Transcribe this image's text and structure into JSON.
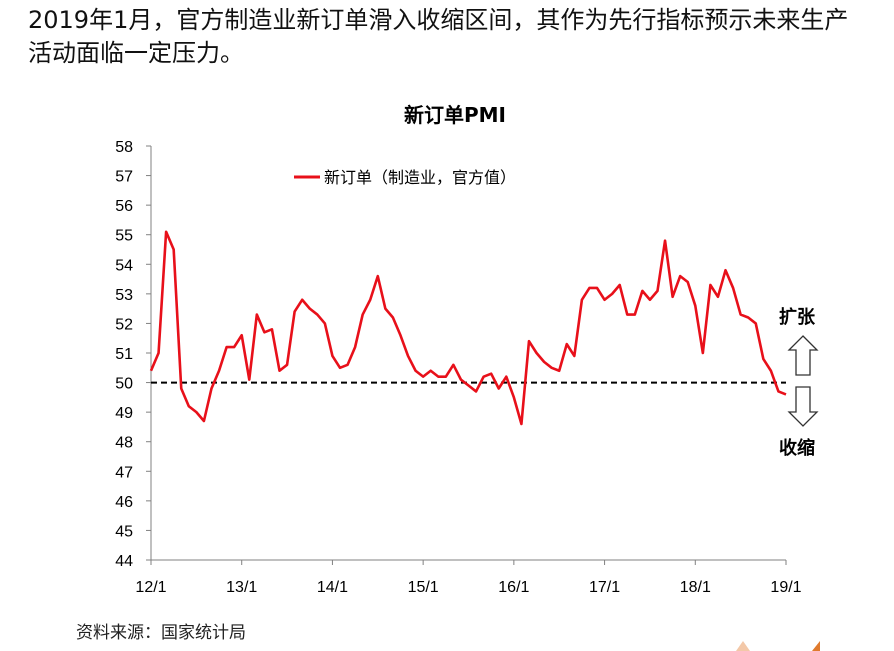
{
  "headline": "2019年1月，官方制造业新订单滑入收缩区间，其作为先行指标预示未来生产活动面临一定压力。",
  "source": "资料来源：国家统计局",
  "chart_data": {
    "type": "line",
    "title": "新订单PMI",
    "x_tick_labels": [
      "12/1",
      "13/1",
      "14/1",
      "15/1",
      "16/1",
      "17/1",
      "18/1",
      "19/1"
    ],
    "ylim": [
      44,
      58
    ],
    "yticks": [
      44,
      45,
      46,
      47,
      48,
      49,
      50,
      51,
      52,
      53,
      54,
      55,
      56,
      57,
      58
    ],
    "grid": false,
    "reference_line": 50,
    "annotations": {
      "expand": "扩张",
      "contract": "收缩"
    },
    "legend": "top-left",
    "series": [
      {
        "name": "新订单（制造业，官方值）",
        "color": "#e8101a",
        "values": [
          50.4,
          51.0,
          55.1,
          54.5,
          49.8,
          49.2,
          49.0,
          48.7,
          49.8,
          50.4,
          51.2,
          51.2,
          51.6,
          50.1,
          52.3,
          51.7,
          51.8,
          50.4,
          50.6,
          52.4,
          52.8,
          52.5,
          52.3,
          52.0,
          50.9,
          50.5,
          50.6,
          51.2,
          52.3,
          52.8,
          53.6,
          52.5,
          52.2,
          51.6,
          50.9,
          50.4,
          50.2,
          50.4,
          50.2,
          50.2,
          50.6,
          50.1,
          49.9,
          49.7,
          50.2,
          50.3,
          49.8,
          50.2,
          49.5,
          48.6,
          51.4,
          51.0,
          50.7,
          50.5,
          50.4,
          51.3,
          50.9,
          52.8,
          53.2,
          53.2,
          52.8,
          53.0,
          53.3,
          52.3,
          52.3,
          53.1,
          52.8,
          53.1,
          54.8,
          52.9,
          53.6,
          53.4,
          52.6,
          51.0,
          53.3,
          52.9,
          53.8,
          53.2,
          52.3,
          52.2,
          52.0,
          50.8,
          50.4,
          49.7,
          49.6
        ]
      }
    ]
  }
}
